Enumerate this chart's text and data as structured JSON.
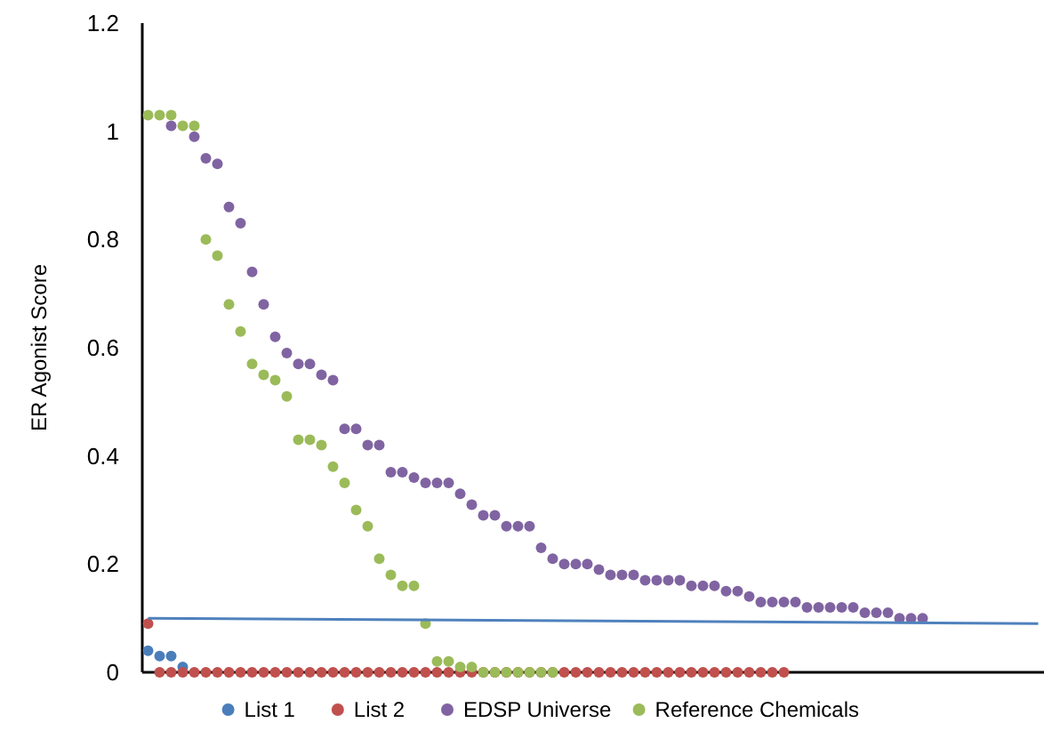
{
  "chart_data": {
    "type": "scatter",
    "ylabel": "ER Agonist Score",
    "ylim": [
      0,
      1.2
    ],
    "yticks": [
      0,
      0.2,
      0.4,
      0.6,
      0.8,
      1,
      1.2
    ],
    "grid": false,
    "legend": "bottom",
    "marker": "circle",
    "categories": [
      null,
      null,
      null,
      null,
      null,
      null,
      null,
      null,
      null,
      null,
      null,
      null,
      null,
      null,
      null,
      null,
      null,
      null,
      null,
      null,
      null,
      null,
      null,
      null,
      null,
      null,
      null,
      null,
      null,
      null,
      null,
      null,
      null,
      null,
      null,
      null,
      null,
      null,
      null,
      null,
      null,
      null,
      null,
      null,
      null,
      null,
      null,
      null,
      null,
      null,
      null,
      null,
      null,
      null,
      null,
      null,
      null,
      null,
      null,
      null,
      null,
      null,
      null,
      null,
      null,
      null,
      null,
      null,
      null,
      null,
      null,
      null,
      null,
      null,
      null,
      null,
      null,
      null
    ],
    "series": [
      {
        "name": "List 1",
        "color": "#4a7ebb",
        "values": [
          0.04,
          0.03,
          0.03,
          0.01,
          null,
          null,
          null,
          null,
          null,
          null,
          null,
          null,
          null,
          null,
          null,
          null,
          null,
          null,
          null,
          null,
          null,
          null,
          null,
          null,
          null,
          null,
          null,
          null,
          null,
          null,
          null,
          null,
          null,
          null,
          null,
          null,
          null,
          null,
          null,
          null,
          null,
          null,
          null,
          null,
          null,
          null,
          null,
          null,
          null,
          null,
          null,
          null,
          null,
          null,
          null,
          null,
          null,
          null,
          null,
          null,
          null,
          null,
          null,
          null,
          null,
          null,
          null,
          null,
          null,
          null,
          null,
          null,
          null,
          null,
          null,
          null,
          null,
          null
        ]
      },
      {
        "name": "List 2",
        "color": "#c0504d",
        "values": [
          0.09,
          0,
          0,
          0,
          0,
          0,
          0,
          0,
          0,
          0,
          0,
          0,
          0,
          0,
          0,
          0,
          0,
          0,
          0,
          0,
          0,
          0,
          0,
          0,
          0,
          0,
          0,
          0,
          0,
          0,
          0,
          0,
          0,
          0,
          0,
          0,
          0,
          0,
          0,
          0,
          0,
          0,
          0,
          0,
          0,
          0,
          0,
          0,
          0,
          0,
          0,
          0,
          0,
          0,
          0,
          0,
          null,
          null,
          null,
          null,
          null,
          null,
          null,
          null,
          null,
          null,
          null,
          null,
          null,
          null,
          null,
          null,
          null,
          null,
          null,
          null,
          null,
          null
        ]
      },
      {
        "name": "EDSP Universe",
        "color": "#8064a2",
        "values": [
          null,
          null,
          1.01,
          null,
          0.99,
          0.95,
          0.94,
          0.86,
          0.83,
          0.74,
          0.68,
          0.62,
          0.59,
          0.57,
          0.57,
          0.55,
          0.54,
          0.45,
          0.45,
          0.42,
          0.42,
          0.37,
          0.37,
          0.36,
          0.35,
          0.35,
          0.35,
          0.33,
          0.31,
          0.29,
          0.29,
          0.27,
          0.27,
          0.27,
          0.23,
          0.21,
          0.2,
          0.2,
          0.2,
          0.19,
          0.18,
          0.18,
          0.18,
          0.17,
          0.17,
          0.17,
          0.17,
          0.16,
          0.16,
          0.16,
          0.15,
          0.15,
          0.14,
          0.13,
          0.13,
          0.13,
          0.13,
          0.12,
          0.12,
          0.12,
          0.12,
          0.12,
          0.11,
          0.11,
          0.11,
          0.1,
          0.1,
          0.1,
          null,
          null,
          null,
          null,
          null,
          null,
          null,
          null,
          null,
          null
        ]
      },
      {
        "name": "Reference Chemicals",
        "color": "#9bbb59",
        "values": [
          1.03,
          1.03,
          1.03,
          1.01,
          1.01,
          0.8,
          0.77,
          0.68,
          0.63,
          0.57,
          0.55,
          0.54,
          0.51,
          0.43,
          0.43,
          0.42,
          0.38,
          0.35,
          0.3,
          0.27,
          0.21,
          0.18,
          0.16,
          0.16,
          0.09,
          0.02,
          0.02,
          0.01,
          0.01,
          0,
          0,
          0,
          0,
          0,
          0,
          0,
          null,
          null,
          null,
          null,
          null,
          null,
          null,
          null,
          null,
          null,
          null,
          null,
          null,
          null,
          null,
          null,
          null,
          null,
          null,
          null,
          null,
          null,
          null,
          null,
          null,
          null,
          null,
          null,
          null,
          null,
          null,
          null,
          null,
          null,
          null,
          null,
          null,
          null,
          null,
          null,
          null,
          null
        ]
      },
      {
        "type": "line",
        "color": "#4f81bd",
        "marker": "none",
        "values": [
          0.1,
          null,
          null,
          null,
          null,
          null,
          null,
          null,
          null,
          null,
          null,
          null,
          null,
          null,
          null,
          null,
          null,
          null,
          null,
          null,
          null,
          null,
          null,
          null,
          null,
          null,
          null,
          null,
          null,
          null,
          null,
          null,
          null,
          null,
          null,
          null,
          null,
          null,
          null,
          null,
          null,
          null,
          null,
          null,
          null,
          null,
          null,
          null,
          null,
          null,
          null,
          null,
          null,
          null,
          null,
          null,
          null,
          null,
          null,
          null,
          null,
          null,
          null,
          null,
          null,
          null,
          null,
          null,
          null,
          null,
          null,
          null,
          null,
          null,
          null,
          null,
          null,
          0.09
        ]
      }
    ]
  }
}
